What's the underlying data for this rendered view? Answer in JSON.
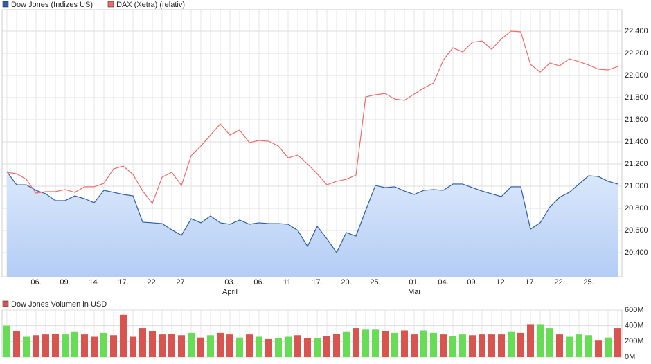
{
  "chart_data": [
    {
      "type": "line",
      "categories": [
        null,
        null,
        null,
        "06.",
        null,
        null,
        "09.",
        null,
        null,
        "14.",
        null,
        null,
        "17.",
        null,
        null,
        "22.",
        null,
        null,
        "27.",
        null,
        null,
        null,
        null,
        "03.",
        null,
        null,
        "06.",
        null,
        null,
        "11.",
        null,
        null,
        "17.",
        null,
        null,
        "20.",
        null,
        null,
        "25.",
        null,
        null,
        null,
        "01.",
        null,
        null,
        "04.",
        null,
        null,
        "09.",
        null,
        null,
        "12.",
        null,
        null,
        "17.",
        null,
        null,
        "22.",
        null,
        null,
        "25.",
        null,
        null,
        null
      ],
      "months": [
        null,
        null,
        null,
        null,
        null,
        null,
        null,
        null,
        null,
        null,
        null,
        null,
        null,
        null,
        null,
        null,
        null,
        null,
        null,
        null,
        null,
        null,
        null,
        "April",
        null,
        null,
        null,
        null,
        null,
        null,
        null,
        null,
        null,
        null,
        null,
        null,
        null,
        null,
        null,
        null,
        null,
        null,
        "Mai",
        null,
        null,
        null,
        null,
        null,
        null,
        null,
        null,
        null,
        null,
        null,
        null,
        null,
        null,
        null,
        null,
        null,
        null,
        null,
        null,
        null
      ],
      "series": [
        {
          "name": "Dow Jones (Indizes US)",
          "color": "#2a5caa",
          "fill": true,
          "values": [
            21131,
            21012,
            21012,
            20962,
            20931,
            20869,
            20869,
            20912,
            20887,
            20850,
            20962,
            20944,
            20925,
            20912,
            20675,
            20669,
            20662,
            20606,
            20556,
            20706,
            20669,
            20731,
            20669,
            20656,
            20694,
            20656,
            20669,
            20662,
            20662,
            20656,
            20600,
            20456,
            20637,
            20525,
            20400,
            20581,
            20550,
            20781,
            21006,
            20987,
            20994,
            20956,
            20925,
            20962,
            20969,
            20962,
            21019,
            21019,
            20987,
            20956,
            20931,
            20906,
            20994,
            20994,
            20612,
            20669,
            20812,
            20900,
            20944,
            21019,
            21094,
            21087,
            21044,
            21019
          ]
        },
        {
          "name": "DAX (Xetra) (relativ)",
          "color": "#f06a6a",
          "fill": false,
          "values": [
            21125,
            21112,
            21062,
            20937,
            20950,
            20950,
            20969,
            20944,
            20994,
            20994,
            21025,
            21156,
            21181,
            21106,
            20956,
            20844,
            21081,
            21125,
            21006,
            21275,
            21362,
            21462,
            21562,
            21462,
            21506,
            21394,
            21412,
            21406,
            21362,
            21256,
            21281,
            21200,
            21112,
            21012,
            21044,
            21062,
            21100,
            21806,
            21825,
            21837,
            21787,
            21775,
            21831,
            21887,
            21931,
            22137,
            22250,
            22212,
            22300,
            22312,
            22237,
            22331,
            22400,
            22394,
            22100,
            22031,
            22112,
            22087,
            22150,
            22125,
            22094,
            22056,
            22050,
            22081
          ]
        }
      ],
      "ylim": [
        20181,
        22594
      ],
      "yticks": [
        {
          "value": 20400,
          "label": "20.400"
        },
        {
          "value": 20600,
          "label": "20.600"
        },
        {
          "value": 20800,
          "label": "20.800"
        },
        {
          "value": 21000,
          "label": "21.000"
        },
        {
          "value": 21200,
          "label": "21.200"
        },
        {
          "value": 21400,
          "label": "21.400"
        },
        {
          "value": 21600,
          "label": "21.600"
        },
        {
          "value": 21800,
          "label": "21.800"
        },
        {
          "value": 22000,
          "label": "22.000"
        },
        {
          "value": 22200,
          "label": "22.200"
        },
        {
          "value": 22400,
          "label": "22.400"
        }
      ],
      "grid": true
    },
    {
      "type": "bar",
      "legend": "Dow Jones Volumen in USD",
      "legend_color": "#d9534f",
      "values": [
        400000000,
        330000000,
        260000000,
        280000000,
        290000000,
        300000000,
        290000000,
        320000000,
        290000000,
        260000000,
        310000000,
        280000000,
        540000000,
        260000000,
        370000000,
        330000000,
        290000000,
        300000000,
        280000000,
        310000000,
        250000000,
        280000000,
        310000000,
        290000000,
        250000000,
        290000000,
        260000000,
        230000000,
        240000000,
        260000000,
        280000000,
        240000000,
        240000000,
        270000000,
        300000000,
        320000000,
        370000000,
        350000000,
        350000000,
        330000000,
        310000000,
        340000000,
        290000000,
        340000000,
        310000000,
        290000000,
        270000000,
        290000000,
        280000000,
        290000000,
        290000000,
        290000000,
        320000000,
        310000000,
        420000000,
        420000000,
        370000000,
        290000000,
        260000000,
        290000000,
        280000000,
        210000000,
        250000000,
        370000000
      ],
      "colors": [
        "#66dd55",
        "#d9534f",
        "#66dd55",
        "#d9534f",
        "#d9534f",
        "#d9534f",
        "#66dd55",
        "#66dd55",
        "#d9534f",
        "#d9534f",
        "#66dd55",
        "#d9534f",
        "#d9534f",
        "#d9534f",
        "#d9534f",
        "#d9534f",
        "#d9534f",
        "#d9534f",
        "#d9534f",
        "#66dd55",
        "#d9534f",
        "#66dd55",
        "#d9534f",
        "#d9534f",
        "#66dd55",
        "#d9534f",
        "#66dd55",
        "#d9534f",
        "#66dd55",
        "#66dd55",
        "#d9534f",
        "#d9534f",
        "#66dd55",
        "#d9534f",
        "#d9534f",
        "#66dd55",
        "#d9534f",
        "#66dd55",
        "#66dd55",
        "#d9534f",
        "#66dd55",
        "#d9534f",
        "#d9534f",
        "#66dd55",
        "#66dd55",
        "#d9534f",
        "#66dd55",
        "#66dd55",
        "#d9534f",
        "#d9534f",
        "#d9534f",
        "#d9534f",
        "#66dd55",
        "#d9534f",
        "#d9534f",
        "#66dd55",
        "#66dd55",
        "#d9534f",
        "#66dd55",
        "#66dd55",
        "#66dd55",
        "#d9534f",
        "#66dd55",
        "#d9534f"
      ],
      "ylim": [
        0,
        600000000
      ],
      "yticks": [
        {
          "value": 0,
          "label": "0M"
        },
        {
          "value": 200000000,
          "label": "200M"
        },
        {
          "value": 400000000,
          "label": "400M"
        },
        {
          "value": 600000000,
          "label": "600M"
        }
      ],
      "grid": true
    }
  ]
}
